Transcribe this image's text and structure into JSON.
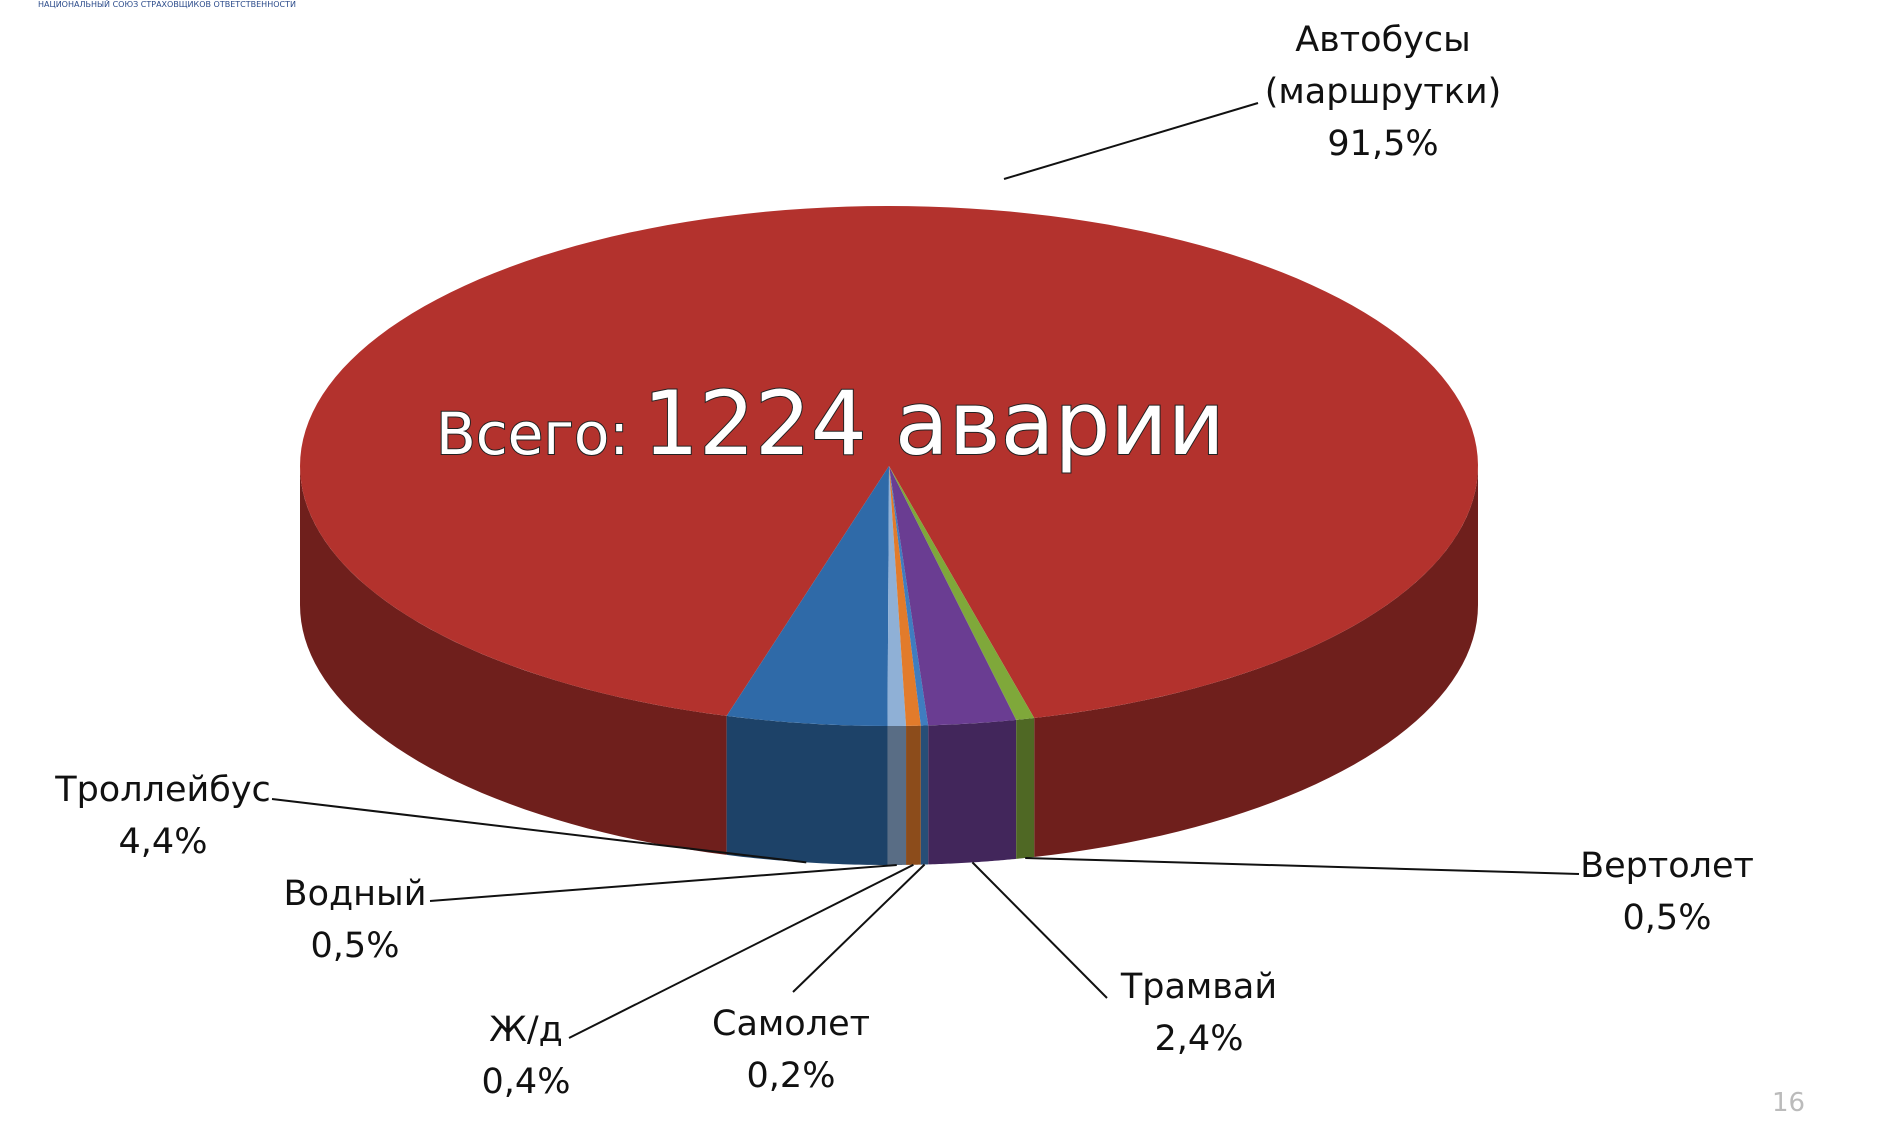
{
  "header": "НАЦИОНАЛЬНЫЙ СОЮЗ СТРАХОВЩИКОВ ОТВЕТСТВЕННОСТИ",
  "page_number": "16",
  "chart_data": {
    "type": "pie3d",
    "total_label": "Всего:",
    "total": "1224 аварии",
    "categories": [
      "Автобусы (маршрутки)",
      "Троллейбус",
      "Водный",
      "Ж/д",
      "Самолет",
      "Трамвай",
      "Вертолет"
    ],
    "values": [
      91.5,
      4.4,
      0.5,
      0.4,
      0.2,
      2.4,
      0.5
    ],
    "value_labels": [
      "91,5%",
      "4,4%",
      "0,5%",
      "0,4%",
      "0,2%",
      "2,4%",
      "0,5%"
    ],
    "colors": [
      "#b3322d",
      "#2f6aa8",
      "#8fb0d6",
      "#e27b2b",
      "#3f7dc0",
      "#6a3d92",
      "#7fa83a"
    ]
  }
}
